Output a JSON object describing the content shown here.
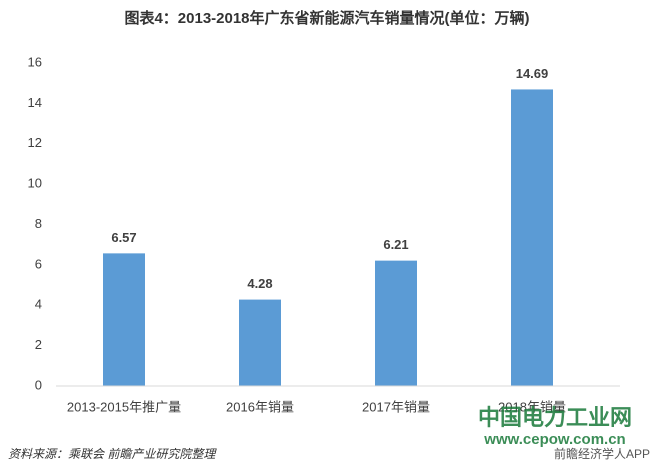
{
  "chart_data": {
    "type": "bar",
    "title": "图表4：2013-2018年广东省新能源汽车销量情况(单位：万辆)",
    "categories": [
      "2013-2015年推广量",
      "2016年销量",
      "2017年销量",
      "2018年销量"
    ],
    "values": [
      6.57,
      4.28,
      6.21,
      14.69
    ],
    "color": "#5b9bd5",
    "ylim": [
      0,
      16
    ],
    "yticks": [
      0,
      2,
      4,
      6,
      8,
      10,
      12,
      14,
      16
    ],
    "grid": false,
    "source": "资料来源：乘联会 前瞻产业研究院整理",
    "annotations": [
      "中国电力工业网",
      "www.cepow.com.cn",
      "前瞻经济学人APP"
    ]
  }
}
